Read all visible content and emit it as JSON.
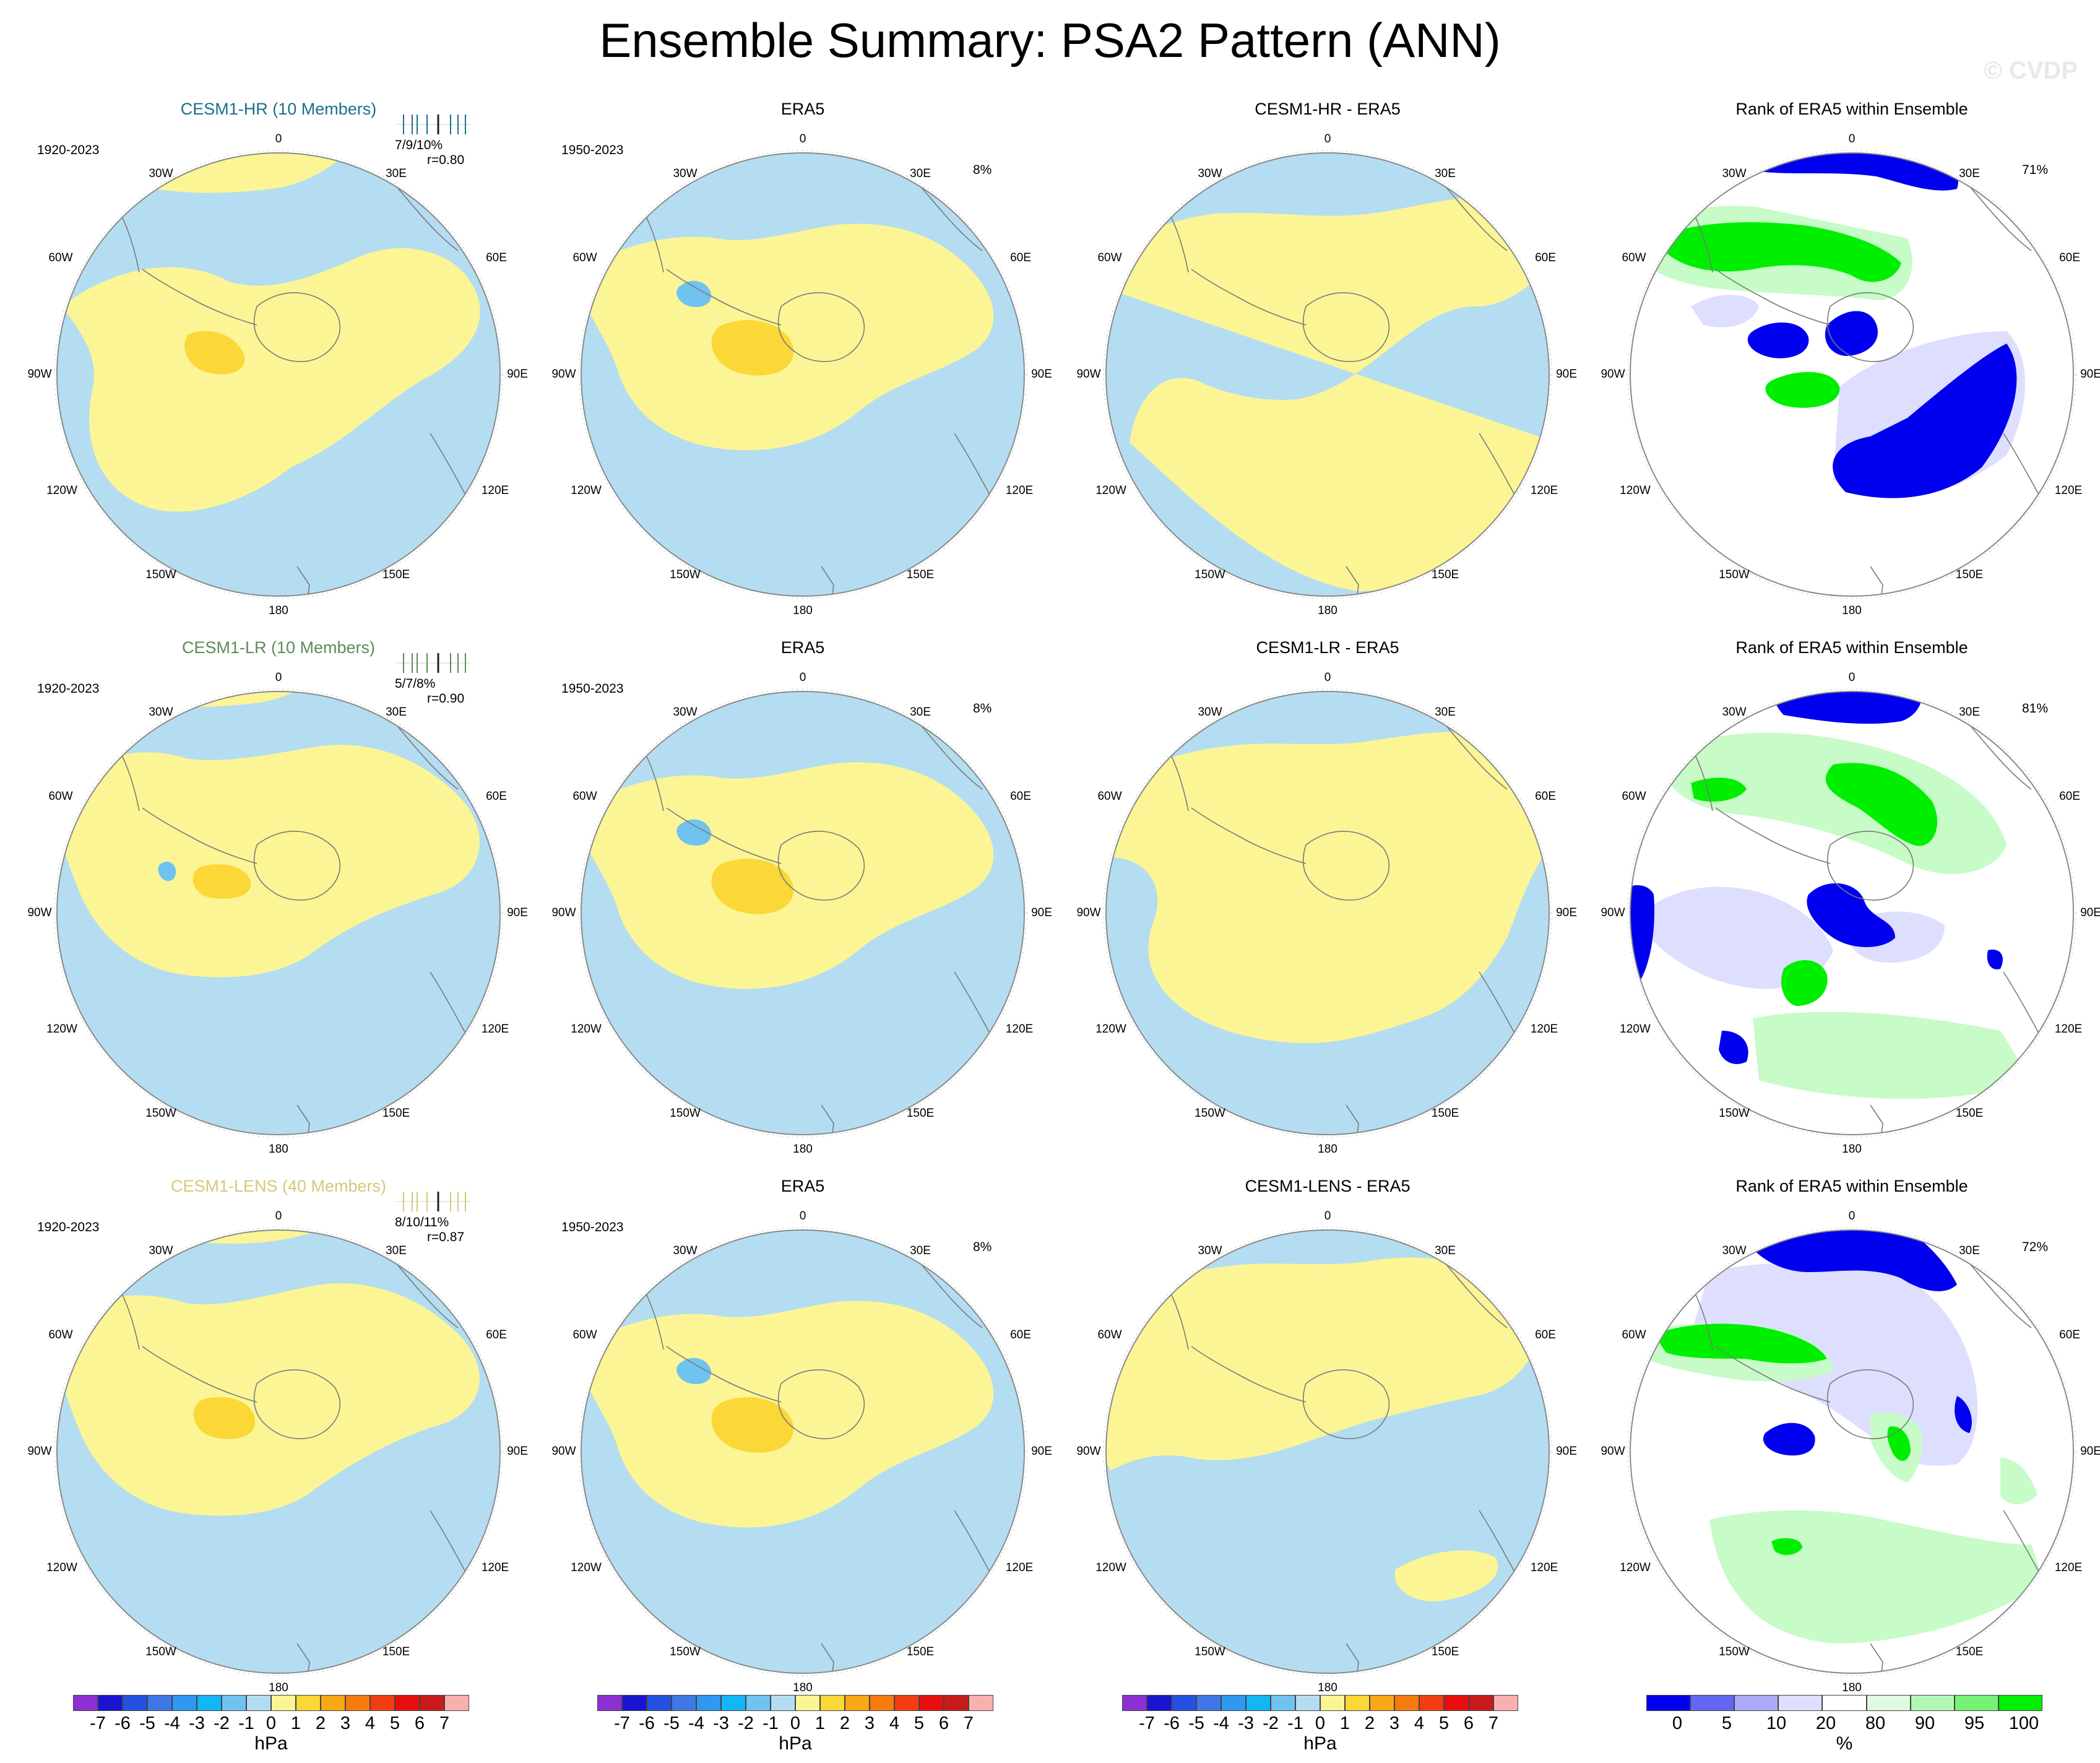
{
  "page": {
    "title": "Ensemble Summary: PSA2 Pattern (ANN)",
    "copyright": "© CVDP"
  },
  "colors": {
    "pos1": "#fbf595",
    "pos2": "#fbd737",
    "neg1": "#b4ddf1",
    "neg2": "#70c3ef",
    "rank_blue": "#0000ef",
    "rank_lblue": "#dedeff",
    "rank_green": "#00ee00",
    "rank_lgreen": "#c7fbc7"
  },
  "lon_labels": {
    "top": "0",
    "l30": "30W",
    "r30": "30E",
    "l60": "60W",
    "r60": "60E",
    "l90": "90W",
    "r90": "90E",
    "l120": "120W",
    "r120": "120E",
    "l150": "150W",
    "r150": "150E",
    "bottom": "180"
  },
  "rows": [
    {
      "model": {
        "title": "CESM1-HR (10 Members)",
        "color": "#1c6f8b",
        "years": "1920-2023",
        "pcts": "7/9/10%",
        "r": "r=0.80"
      },
      "obs": {
        "title": "ERA5",
        "years": "1950-2023",
        "pct": "8%"
      },
      "diff": {
        "title": "CESM1-HR - ERA5"
      },
      "rank": {
        "title": "Rank of ERA5 within Ensemble",
        "pct": "71%"
      }
    },
    {
      "model": {
        "title": "CESM1-LR (10 Members)",
        "color": "#5e8a5a",
        "years": "1920-2023",
        "pcts": "5/7/8%",
        "r": "r=0.90"
      },
      "obs": {
        "title": "ERA5",
        "years": "1950-2023",
        "pct": "8%"
      },
      "diff": {
        "title": "CESM1-LR - ERA5"
      },
      "rank": {
        "title": "Rank of ERA5 within Ensemble",
        "pct": "81%"
      }
    },
    {
      "model": {
        "title": "CESM1-LENS (40 Members)",
        "color": "#d4c978",
        "years": "1920-2023",
        "pcts": "8/10/11%",
        "r": "r=0.87"
      },
      "obs": {
        "title": "ERA5",
        "years": "1950-2023",
        "pct": "8%"
      },
      "diff": {
        "title": "CESM1-LENS - ERA5"
      },
      "rank": {
        "title": "Rank of ERA5 within Ensemble",
        "pct": "72%"
      }
    }
  ],
  "chart_data": [
    {
      "type": "heatmap",
      "name": "pattern colorbar",
      "unit_label": "hPa",
      "levels": [
        -7,
        -6,
        -5,
        -4,
        -3,
        -2,
        -1,
        0,
        1,
        2,
        3,
        4,
        5,
        6,
        7
      ],
      "tick_labels": [
        "-7",
        "-6",
        "-5",
        "-4",
        "-3",
        "-2",
        "-1",
        "0",
        "1",
        "2",
        "3",
        "4",
        "5",
        "6",
        "7"
      ],
      "colors": [
        "#8c2fd3",
        "#1a14d1",
        "#2451e0",
        "#3f78e6",
        "#2f98f0",
        "#12b6f5",
        "#70c3ef",
        "#b4ddf1",
        "#fbf595",
        "#fbd737",
        "#f8a715",
        "#f67a0e",
        "#f23d12",
        "#e80e0e",
        "#c91a1a",
        "#fbb0b0"
      ]
    },
    {
      "type": "heatmap",
      "name": "rank colorbar",
      "unit_label": "%",
      "tick_labels": [
        "0",
        "5",
        "10",
        "20",
        "80",
        "90",
        "95",
        "100"
      ],
      "colors": [
        "#0000ef",
        "#6464f5",
        "#aaaaf8",
        "#dedeff",
        "#ffffff",
        "#dffbdf",
        "#b4f7b4",
        "#76f276",
        "#00ee00"
      ]
    }
  ]
}
